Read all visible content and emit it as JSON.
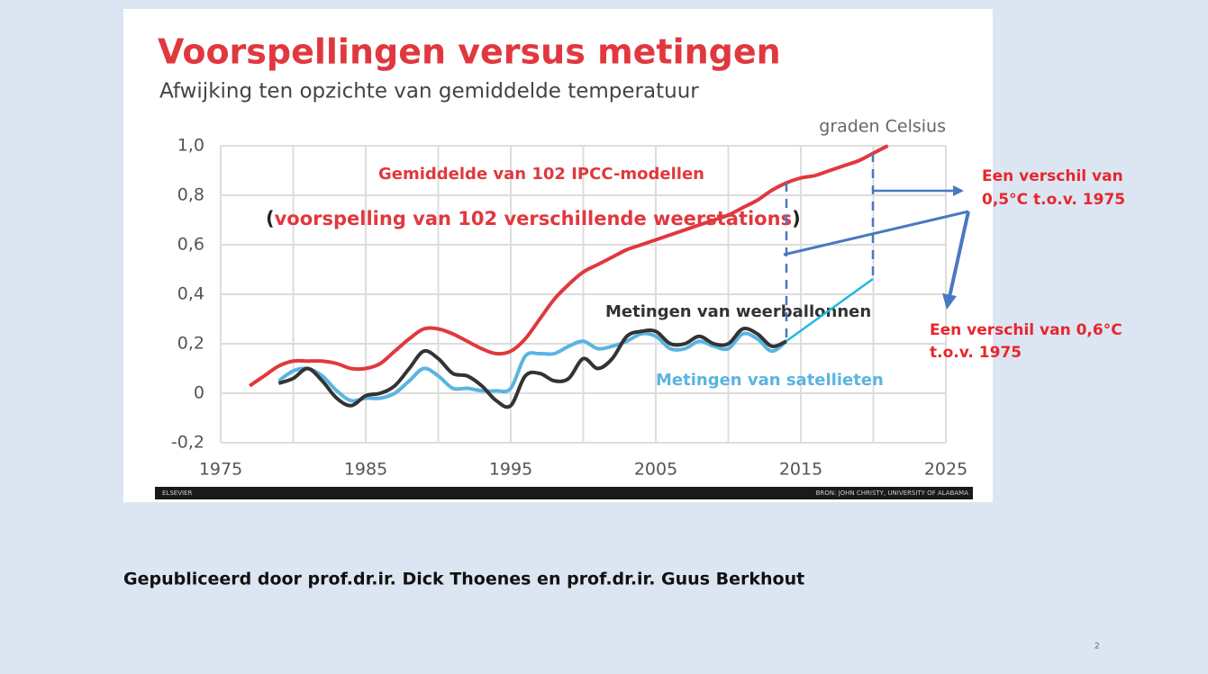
{
  "chart_data": {
    "type": "line",
    "title": "Voorspellingen versus metingen",
    "subtitle": "Afwijking ten opzichte van gemiddelde temperatuur",
    "y_label": "graden Celsius",
    "xlim": [
      1975,
      2025
    ],
    "xticks": [
      1975,
      1985,
      1995,
      2005,
      2015,
      2025
    ],
    "ylim": [
      -0.2,
      1.0
    ],
    "yticks": [
      {
        "value": -0.2,
        "label": "-0,2"
      },
      0,
      {
        "value": 0.2,
        "label": "0,2"
      },
      {
        "value": 0.4,
        "label": "0,4"
      },
      {
        "value": 0.6,
        "label": "0,6"
      },
      {
        "value": 0.8,
        "label": "0,8"
      },
      {
        "value": 1.0,
        "label": "1,0"
      }
    ],
    "grid": true,
    "series": [
      {
        "name": "Gemiddelde van 102 IPCC-modellen",
        "color": "#e0383e",
        "x": [
          1977,
          1978,
          1979,
          1980,
          1981,
          1982,
          1983,
          1984,
          1985,
          1986,
          1987,
          1988,
          1989,
          1990,
          1991,
          1992,
          1993,
          1994,
          1995,
          1996,
          1997,
          1998,
          1999,
          2000,
          2001,
          2002,
          2003,
          2004,
          2005,
          2006,
          2007,
          2008,
          2009,
          2010,
          2011,
          2012,
          2013,
          2014,
          2015,
          2016,
          2017,
          2018,
          2019,
          2020,
          2021
        ],
        "values": [
          0.03,
          0.07,
          0.11,
          0.13,
          0.13,
          0.13,
          0.12,
          0.1,
          0.1,
          0.12,
          0.17,
          0.22,
          0.26,
          0.26,
          0.24,
          0.21,
          0.18,
          0.16,
          0.17,
          0.22,
          0.3,
          0.38,
          0.44,
          0.49,
          0.52,
          0.55,
          0.58,
          0.6,
          0.62,
          0.64,
          0.66,
          0.68,
          0.7,
          0.72,
          0.75,
          0.78,
          0.82,
          0.85,
          0.87,
          0.88,
          0.9,
          0.92,
          0.94,
          0.97,
          1.0
        ]
      },
      {
        "name": "Metingen van weerballonnen",
        "color": "#333333",
        "x": [
          1979,
          1980,
          1981,
          1982,
          1983,
          1984,
          1985,
          1986,
          1987,
          1988,
          1989,
          1990,
          1991,
          1992,
          1993,
          1994,
          1995,
          1996,
          1997,
          1998,
          1999,
          2000,
          2001,
          2002,
          2003,
          2004,
          2005,
          2006,
          2007,
          2008,
          2009,
          2010,
          2011,
          2012,
          2013,
          2014
        ],
        "values": [
          0.04,
          0.06,
          0.1,
          0.05,
          -0.02,
          -0.05,
          -0.01,
          0.0,
          0.03,
          0.1,
          0.17,
          0.14,
          0.08,
          0.07,
          0.03,
          -0.03,
          -0.05,
          0.07,
          0.08,
          0.05,
          0.06,
          0.14,
          0.1,
          0.14,
          0.23,
          0.25,
          0.25,
          0.2,
          0.2,
          0.23,
          0.2,
          0.2,
          0.26,
          0.24,
          0.19,
          0.21
        ]
      },
      {
        "name": "Metingen van satellieten",
        "color": "#5ab4e0",
        "x": [
          1979,
          1980,
          1981,
          1982,
          1983,
          1984,
          1985,
          1986,
          1987,
          1988,
          1989,
          1990,
          1991,
          1992,
          1993,
          1994,
          1995,
          1996,
          1997,
          1998,
          1999,
          2000,
          2001,
          2002,
          2003,
          2004,
          2005,
          2006,
          2007,
          2008,
          2009,
          2010,
          2011,
          2012,
          2013,
          2014
        ],
        "values": [
          0.05,
          0.09,
          0.1,
          0.07,
          0.01,
          -0.03,
          -0.02,
          -0.02,
          0.0,
          0.05,
          0.1,
          0.07,
          0.02,
          0.02,
          0.01,
          0.01,
          0.02,
          0.15,
          0.16,
          0.16,
          0.19,
          0.21,
          0.18,
          0.19,
          0.21,
          0.24,
          0.23,
          0.18,
          0.18,
          0.21,
          0.19,
          0.18,
          0.24,
          0.22,
          0.17,
          0.21
        ]
      }
    ],
    "annotations": [
      {
        "parts": [
          "(",
          "voorspelling van 102 verschillende weerstations",
          ")"
        ]
      },
      {
        "lines": [
          "Een verschil van",
          "0,5°C t.o.v. 1975"
        ]
      },
      {
        "lines": [
          "Een verschil van 0,6°C",
          "t.o.v. 1975"
        ]
      }
    ],
    "source_left": "ELSEVIER",
    "source_right": "BRON: JOHN CHRISTY, UNIVERSITY OF ALABAMA"
  },
  "slide": {
    "caption": "Gepubliceerd door prof.dr.ir. Dick Thoenes en prof.dr.ir. Guus Berkhout",
    "page": "2"
  }
}
